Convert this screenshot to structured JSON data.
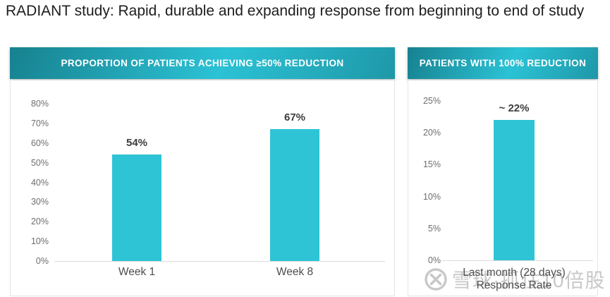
{
  "page": {
    "title": "RADIANT study: Rapid, durable and expanding response from beginning to end of study"
  },
  "panels": [
    {
      "header": "PROPORTION OF PATIENTS ACHIEVING ≥50% REDUCTION"
    },
    {
      "header": "PATIENTS WITH 100% REDUCTION"
    }
  ],
  "chart_data": [
    {
      "type": "bar",
      "title": "PROPORTION OF PATIENTS ACHIEVING ≥50% REDUCTION",
      "categories": [
        [
          "Week 1"
        ],
        [
          "Week 8"
        ]
      ],
      "values": [
        54,
        67
      ],
      "value_labels": [
        "54%",
        "67%"
      ],
      "xlabel": "",
      "ylabel": "",
      "ylim": [
        0,
        80
      ],
      "ytick_step": 10,
      "ytick_suffix": "%",
      "grid": false,
      "legend": false,
      "bar_color": "#2EC4D6"
    },
    {
      "type": "bar",
      "title": "PATIENTS WITH 100% REDUCTION",
      "categories": [
        [
          "Last month (28 days)",
          "Response Rate"
        ]
      ],
      "values": [
        22
      ],
      "value_labels": [
        "~ 22%"
      ],
      "xlabel": "",
      "ylabel": "",
      "ylim": [
        0,
        25
      ],
      "ytick_step": 5,
      "ytick_suffix": "%",
      "grid": false,
      "legend": false,
      "bar_color": "#2EC4D6"
    }
  ],
  "watermark": {
    "icon": "xueqiu-logo",
    "text": "雪球·抓住10倍股"
  },
  "colors": {
    "banner_dark": "#17818F",
    "banner_bright": "#2BC2D5",
    "banner_end": "#1E98A8",
    "bar": "#2EC4D6",
    "axis_line": "#DCDCDC",
    "tick_text": "#6E6E6E",
    "category_text": "#4D4D4D",
    "value_text": "#3C3C3C",
    "title_text": "#1D1D1D",
    "watermark": "#C8C8C8"
  }
}
